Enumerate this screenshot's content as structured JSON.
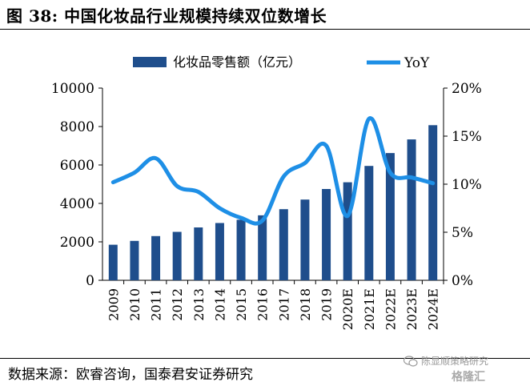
{
  "header": {
    "title": "图 38:  中国化妆品行业规模持续双位数增长"
  },
  "footer": {
    "source": "数据来源：欧睿咨询，国泰君安证券研究"
  },
  "watermark": {
    "line1": "陈显顺策略研究",
    "line2": "格隆汇"
  },
  "colors": {
    "bar": "#1F4E8C",
    "line": "#1E8FE6"
  },
  "chart_data": {
    "type": "bar",
    "categories": [
      "2009",
      "2010",
      "2011",
      "2012",
      "2013",
      "2014",
      "2015",
      "2016",
      "2017",
      "2018",
      "2019",
      "2020E",
      "2021E",
      "2022E",
      "2023E",
      "2024E"
    ],
    "series": [
      {
        "name": "化妆品零售额（亿元）",
        "type": "bar",
        "axis": "left",
        "values": [
          1850,
          2050,
          2300,
          2520,
          2750,
          2980,
          3150,
          3380,
          3700,
          4200,
          4750,
          5100,
          5950,
          6620,
          7330,
          8070
        ]
      },
      {
        "name": "YoY",
        "type": "line",
        "axis": "right",
        "values": [
          0.102,
          0.112,
          0.127,
          0.098,
          0.092,
          0.075,
          0.065,
          0.062,
          0.108,
          0.122,
          0.14,
          0.067,
          0.168,
          0.112,
          0.107,
          0.101
        ]
      }
    ],
    "y_left": {
      "ticks": [
        "0",
        "2000",
        "4000",
        "6000",
        "8000",
        "10000"
      ],
      "ylim": [
        0,
        10000
      ]
    },
    "y_right": {
      "ticks": [
        "0%",
        "5%",
        "10%",
        "15%",
        "20%"
      ],
      "ylim": [
        0,
        0.2
      ]
    },
    "legend": {
      "position": "top"
    }
  }
}
